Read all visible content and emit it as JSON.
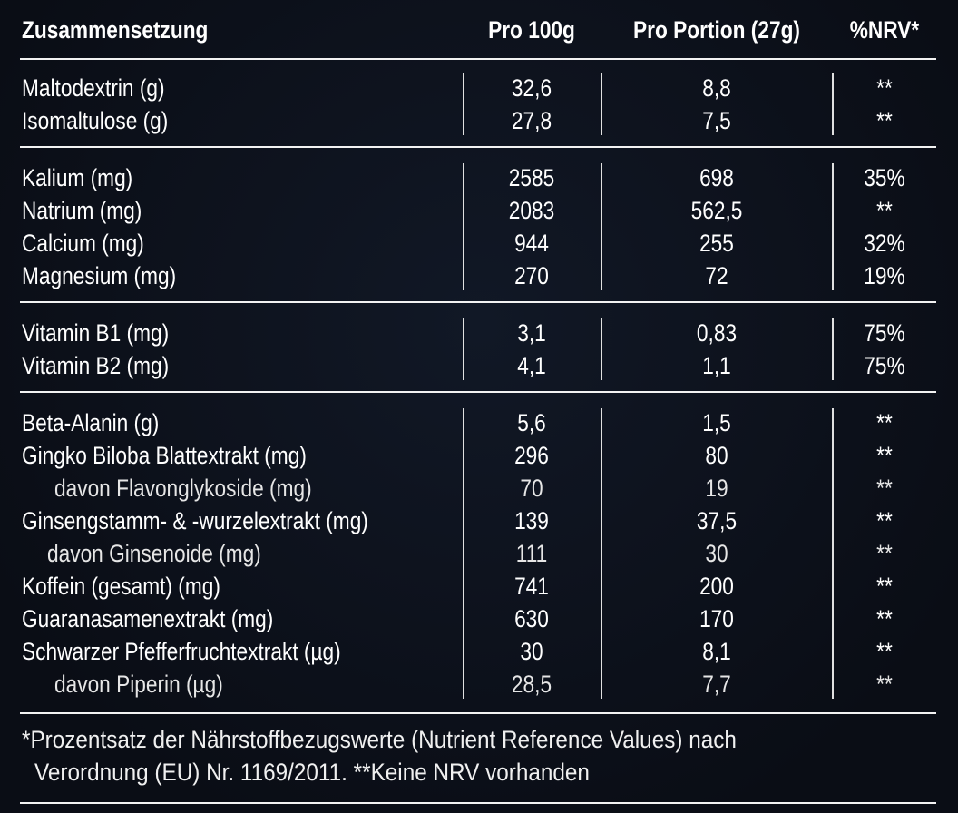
{
  "header": {
    "title": "Zusammensetzung",
    "columns": [
      "Pro 100g",
      "Pro Portion (27g)",
      "%NRV*"
    ]
  },
  "groups": [
    {
      "rows": [
        {
          "label": "Maltodextrin (g)",
          "values": [
            "32,6",
            "8,8",
            "**"
          ]
        },
        {
          "label": "Isomaltulose (g)",
          "values": [
            "27,8",
            "7,5",
            "**"
          ]
        }
      ]
    },
    {
      "rows": [
        {
          "label": "Kalium (mg)",
          "values": [
            "2585",
            "698",
            "35%"
          ]
        },
        {
          "label": "Natrium (mg)",
          "values": [
            "2083",
            "562,5",
            "**"
          ]
        },
        {
          "label": "Calcium (mg)",
          "values": [
            "944",
            "255",
            "32%"
          ]
        },
        {
          "label": "Magnesium (mg)",
          "values": [
            "270",
            "72",
            "19%"
          ]
        }
      ]
    },
    {
      "rows": [
        {
          "label": "Vitamin B1 (mg)",
          "values": [
            "3,1",
            "0,83",
            "75%"
          ]
        },
        {
          "label": "Vitamin B2 (mg)",
          "values": [
            "4,1",
            "1,1",
            "75%"
          ]
        }
      ]
    },
    {
      "rows": [
        {
          "label": "Beta-Alanin (g)",
          "values": [
            "5,6",
            "1,5",
            "**"
          ]
        },
        {
          "label": "Gingko Biloba Blattextrakt (mg)",
          "values": [
            "296",
            "80",
            "**"
          ]
        },
        {
          "label": "davon Flavonglykoside (mg)",
          "values": [
            "70",
            "19",
            "**"
          ],
          "sub": true
        },
        {
          "label": "Ginsengstamm- & -wurzelextrakt (mg)",
          "values": [
            "139",
            "37,5",
            "**"
          ]
        },
        {
          "label": "davon Ginsenoide (mg)",
          "values": [
            "111",
            "30",
            "**"
          ],
          "sub": true
        },
        {
          "label": "Koffein (gesamt) (mg)",
          "values": [
            "741",
            "200",
            "**"
          ]
        },
        {
          "label": "Guaranasamenextrakt (mg)",
          "values": [
            "630",
            "170",
            "**"
          ]
        },
        {
          "label": "Schwarzer Pfefferfruchtextrakt (µg)",
          "values": [
            "30",
            "8,1",
            "**"
          ]
        },
        {
          "label": "davon Piperin (µg)",
          "values": [
            "28,5",
            "7,7",
            "**"
          ],
          "sub": true
        }
      ]
    }
  ],
  "footnote": [
    "*Prozentsatz der Nährstoffbezugswerte (Nutrient Reference Values) nach",
    "Verordnung (EU) Nr. 1169/2011. **Keine NRV vorhanden"
  ]
}
